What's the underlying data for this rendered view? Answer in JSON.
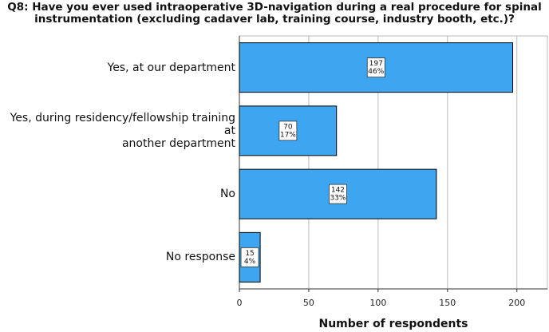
{
  "chart_data": {
    "type": "bar",
    "orientation": "horizontal",
    "title": "Q8: Have you ever used intraoperative 3D-navigation during a real procedure for spinal\ninstrumentation (excluding cadaver lab, training course, industry booth, etc.)?",
    "x_label": "Number of respondents",
    "categories": [
      "Yes, at our department",
      "Yes, during residency/fellowship training at\nanother department",
      "No",
      "No response"
    ],
    "values": [
      197,
      70,
      142,
      15
    ],
    "percent_labels": [
      "46%",
      "17%",
      "33%",
      "4%"
    ],
    "color": "#3ea6f0",
    "xlim": [
      0,
      222
    ],
    "xticks": [
      0,
      50,
      100,
      150,
      200
    ],
    "grid": true
  }
}
